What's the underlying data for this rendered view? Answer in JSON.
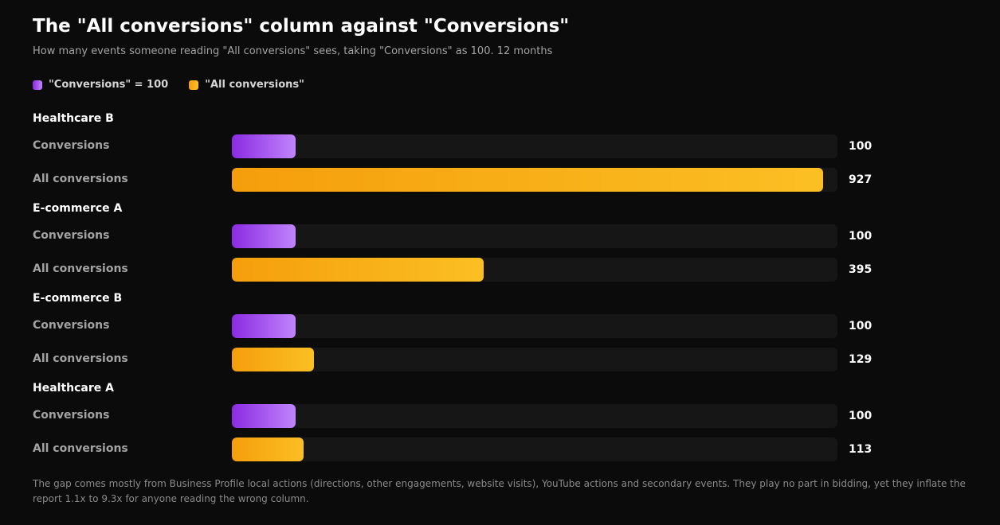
{
  "header": {
    "title": "The \"All conversions\" column against \"Conversions\"",
    "subtitle": "How many events someone reading \"All conversions\" sees, taking \"Conversions\" as 100. 12 months"
  },
  "legend": {
    "items": [
      {
        "label": "\"Conversions\" = 100",
        "color": "#a855f7"
      },
      {
        "label": "\"All conversions\"",
        "color": "#fbbf24"
      }
    ]
  },
  "chart_data": {
    "type": "bar",
    "orientation": "horizontal",
    "xlim": [
      0,
      950
    ],
    "grid": false,
    "legend_position": "top-left",
    "colors": {
      "Conversions": "#a855f7",
      "All conversions": "#fbbf24"
    },
    "groups": [
      {
        "name": "Healthcare B",
        "rows": [
          {
            "label": "Conversions",
            "value": 100
          },
          {
            "label": "All conversions",
            "value": 927
          }
        ]
      },
      {
        "name": "E-commerce A",
        "rows": [
          {
            "label": "Conversions",
            "value": 100
          },
          {
            "label": "All conversions",
            "value": 395
          }
        ]
      },
      {
        "name": "E-commerce B",
        "rows": [
          {
            "label": "Conversions",
            "value": 100
          },
          {
            "label": "All conversions",
            "value": 129
          }
        ]
      },
      {
        "name": "Healthcare A",
        "rows": [
          {
            "label": "Conversions",
            "value": 100
          },
          {
            "label": "All conversions",
            "value": 113
          }
        ]
      }
    ]
  },
  "footnote": "The gap comes mostly from Business Profile local actions (directions, other engagements, website visits), YouTube actions and secondary events. They play no part in bidding, yet they inflate the report 1.1x to 9.3x for anyone reading the wrong column."
}
